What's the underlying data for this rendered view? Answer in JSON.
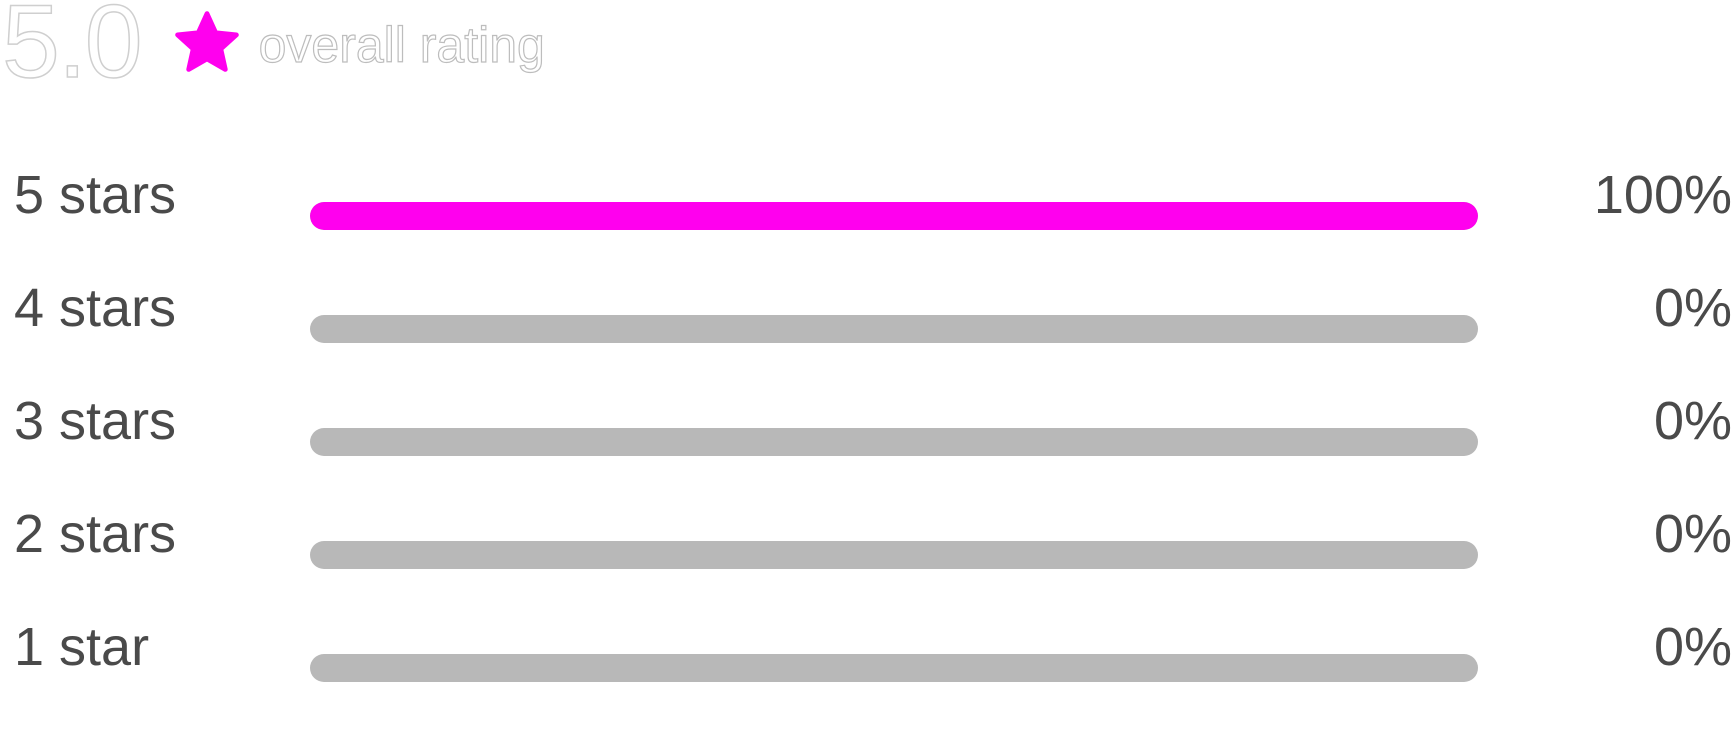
{
  "summary": {
    "score": "5.0",
    "label": "overall rating",
    "icon": "star-icon",
    "accent_color": "#ff00ee"
  },
  "breakdown": [
    {
      "label": "5 stars",
      "percent_text": "100%",
      "percent": 100
    },
    {
      "label": "4 stars",
      "percent_text": "0%",
      "percent": 0
    },
    {
      "label": "3 stars",
      "percent_text": "0%",
      "percent": 0
    },
    {
      "label": "2 stars",
      "percent_text": "0%",
      "percent": 0
    },
    {
      "label": "1 star",
      "percent_text": "0%",
      "percent": 0
    }
  ],
  "colors": {
    "bar_fill": "#ff00ee",
    "bar_track": "#b8b8b8",
    "text": "#4a4a4a"
  }
}
